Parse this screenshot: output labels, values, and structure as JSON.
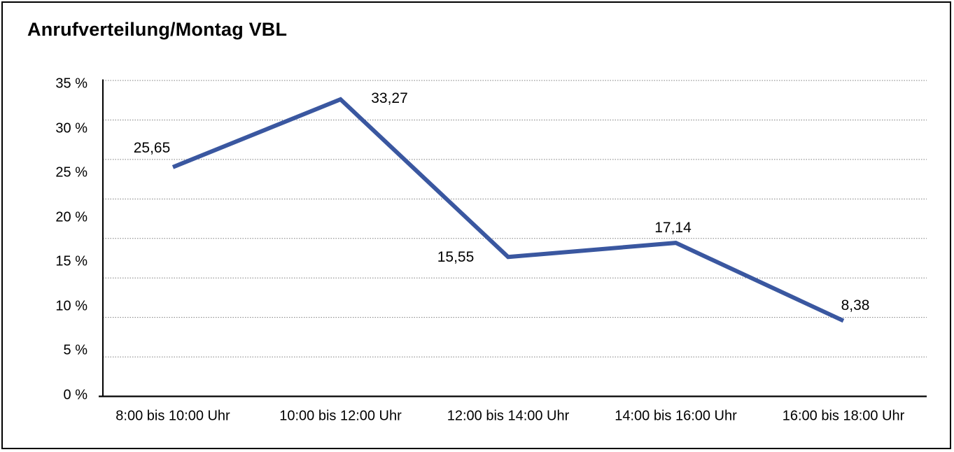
{
  "chart_data": {
    "type": "line",
    "title": "Anrufverteilung/Montag VBL",
    "categories": [
      "8:00 bis 10:00 Uhr",
      "10:00 bis 12:00 Uhr",
      "12:00 bis 14:00 Uhr",
      "14:00 bis 16:00 Uhr",
      "16:00 bis 18:00 Uhr"
    ],
    "values": [
      25.65,
      33.27,
      15.55,
      17.14,
      8.38
    ],
    "value_labels": [
      "25,65",
      "33,27",
      "15,55",
      "17,14",
      "8,38"
    ],
    "y_ticks": [
      "0 %",
      "5 %",
      "10 %",
      "15 %",
      "20 %",
      "25 %",
      "30 %",
      "35 %"
    ],
    "ylim": [
      0,
      35
    ],
    "xlabel": "",
    "ylabel": "",
    "legend": "none",
    "grid": "horizontal-dotted",
    "colors": {
      "line": "#3A57A0",
      "axis": "#000000",
      "gridline": "#7F7F7F",
      "text": "#000000",
      "background": "#FFFFFF"
    }
  }
}
